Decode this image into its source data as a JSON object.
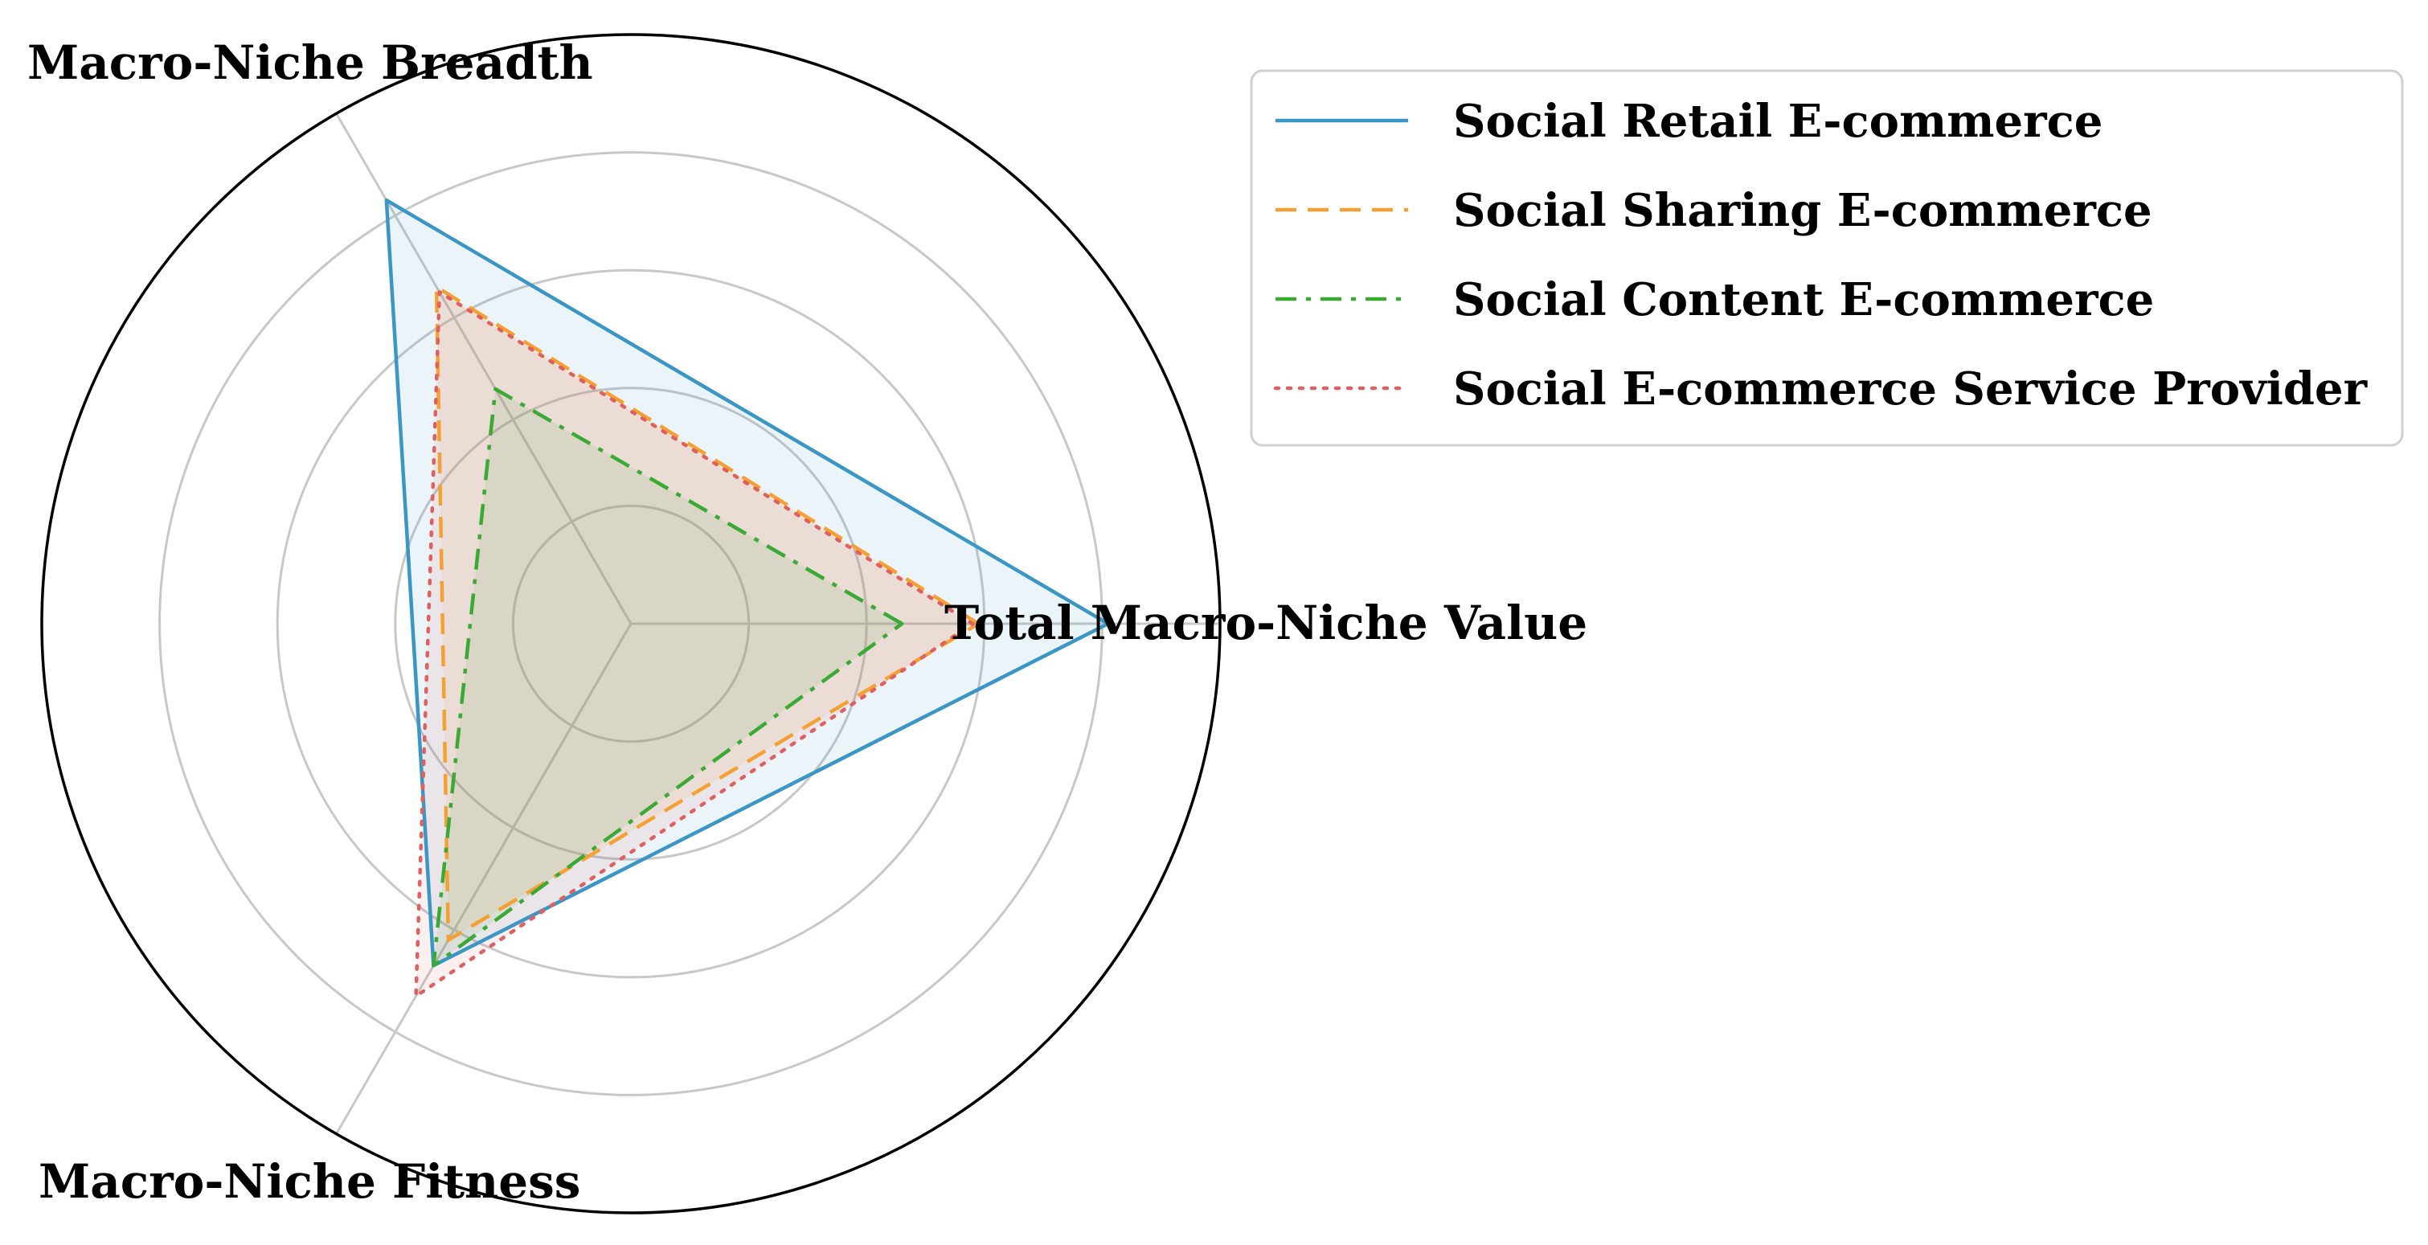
{
  "chart_data": {
    "type": "radar",
    "axes": [
      "Total Macro-Niche Value",
      "Macro-Niche Breadth",
      "Macro-Niche Fitness"
    ],
    "radial_range": [
      0,
      1
    ],
    "radial_ticks": [
      0.2,
      0.4,
      0.6,
      0.8,
      1.0
    ],
    "grid": true,
    "legend_position": "top-right",
    "series": [
      {
        "name": "Social Retail E-commerce",
        "values": [
          0.81,
          0.83,
          0.67
        ],
        "color": "#3a96c4",
        "dash": "solid"
      },
      {
        "name": "Social Sharing E-commerce",
        "values": [
          0.59,
          0.66,
          0.62
        ],
        "color": "#f5a033",
        "dash": "dashed"
      },
      {
        "name": "Social Content E-commerce",
        "values": [
          0.46,
          0.46,
          0.67
        ],
        "color": "#3aaa35",
        "dash": "dashdot"
      },
      {
        "name": "Social E-commerce Service Provider",
        "values": [
          0.58,
          0.65,
          0.73
        ],
        "color": "#e06060",
        "dash": "dotted"
      }
    ]
  }
}
